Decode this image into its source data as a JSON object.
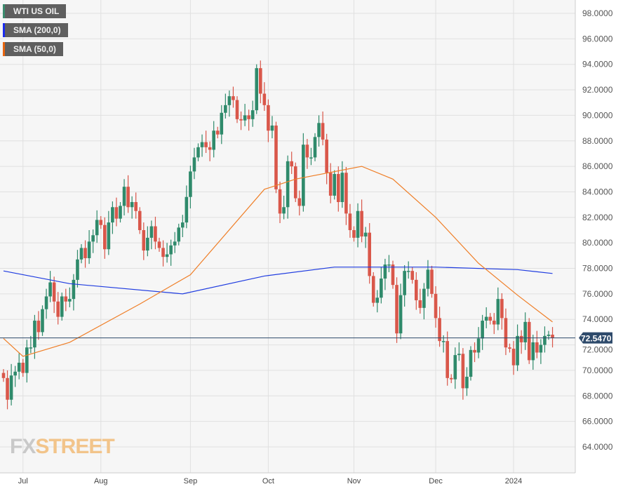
{
  "legend": [
    {
      "label": "WTI US OIL",
      "color": "#3a8c6e"
    },
    {
      "label": "SMA (200,0)",
      "color": "#1a2cf0"
    },
    {
      "label": "SMA (50,0)",
      "color": "#e8650f"
    }
  ],
  "watermark": {
    "part1": "FX",
    "part2": "STREET"
  },
  "colors": {
    "up": "#2f8a6b",
    "down": "#d9574a",
    "sma200": "#1f3ce0",
    "sma50": "#ef7f28",
    "price_line": "#2e4a6b"
  },
  "chart_data": {
    "type": "candlestick",
    "title": "WTI US OIL",
    "ylim": [
      63,
      99
    ],
    "yticks": [
      "64.0000",
      "66.0000",
      "68.0000",
      "70.0000",
      "72.0000",
      "74.0000",
      "76.0000",
      "78.0000",
      "80.0000",
      "82.0000",
      "84.0000",
      "86.0000",
      "88.0000",
      "90.0000",
      "92.0000",
      "94.0000",
      "96.0000",
      "98.0000"
    ],
    "xticks": [
      {
        "label": "Jul",
        "index": 5
      },
      {
        "label": "Aug",
        "index": 25
      },
      {
        "label": "Sep",
        "index": 48
      },
      {
        "label": "Oct",
        "index": 68
      },
      {
        "label": "Nov",
        "index": 90
      },
      {
        "label": "Dec",
        "index": 111
      },
      {
        "label": "2024",
        "index": 131
      }
    ],
    "first_open": 69.8,
    "closes": [
      69.4,
      67.7,
      69.6,
      69.9,
      70.6,
      69.8,
      71.8,
      71.8,
      73.9,
      73.0,
      74.8,
      75.8,
      76.9,
      75.4,
      74.2,
      75.8,
      75.4,
      75.6,
      77.1,
      78.7,
      79.6,
      78.8,
      80.1,
      80.6,
      81.8,
      81.4,
      79.5,
      81.6,
      82.8,
      81.9,
      82.9,
      84.4,
      82.8,
      83.2,
      82.5,
      81.0,
      79.4,
      80.4,
      81.3,
      80.1,
      79.6,
      78.9,
      79.1,
      79.8,
      80.1,
      81.2,
      81.6,
      83.6,
      85.6,
      86.7,
      87.5,
      87.9,
      87.5,
      87.3,
      88.8,
      88.5,
      90.2,
      90.8,
      91.5,
      91.2,
      89.7,
      89.6,
      90.0,
      89.7,
      90.4,
      93.7,
      91.7,
      90.8,
      88.8,
      89.2,
      84.2,
      82.3,
      82.8,
      86.4,
      86.0,
      83.5,
      82.9,
      87.7,
      86.7,
      86.7,
      88.3,
      89.4,
      88.1,
      85.5,
      83.7,
      85.4,
      83.2,
      85.5,
      82.3,
      81.0,
      80.4,
      82.5,
      80.5,
      80.8,
      77.4,
      75.3,
      75.7,
      77.2,
      78.3,
      78.3,
      76.7,
      72.9,
      75.9,
      77.8,
      77.8,
      77.1,
      75.5,
      74.9,
      76.4,
      77.9,
      76.0,
      74.1,
      72.3,
      72.3,
      69.4,
      69.3,
      71.2,
      71.3,
      68.6,
      69.5,
      71.6,
      71.4,
      72.5,
      73.9,
      74.2,
      73.9,
      73.6,
      75.6,
      74.1,
      71.8,
      71.7,
      70.4,
      72.7,
      72.2,
      73.8,
      70.8,
      72.2,
      71.4,
      72.0,
      72.7,
      72.8,
      72.55
    ],
    "sma200": [
      [
        0,
        77.8
      ],
      [
        17,
        76.8
      ],
      [
        46,
        76.0
      ],
      [
        67,
        77.4
      ],
      [
        85,
        78.1
      ],
      [
        111,
        78.1
      ],
      [
        132,
        77.9
      ],
      [
        141,
        77.6
      ]
    ],
    "sma50": [
      [
        0,
        72.5
      ],
      [
        5,
        71.1
      ],
      [
        17,
        72.2
      ],
      [
        35,
        75.2
      ],
      [
        48,
        77.5
      ],
      [
        67,
        84.2
      ],
      [
        75,
        85.0
      ],
      [
        92,
        86.0
      ],
      [
        100,
        85.0
      ],
      [
        111,
        82.0
      ],
      [
        122,
        78.4
      ],
      [
        132,
        75.9
      ],
      [
        141,
        73.8
      ]
    ],
    "last_price": 72.547,
    "last_price_label": "72.5470"
  }
}
